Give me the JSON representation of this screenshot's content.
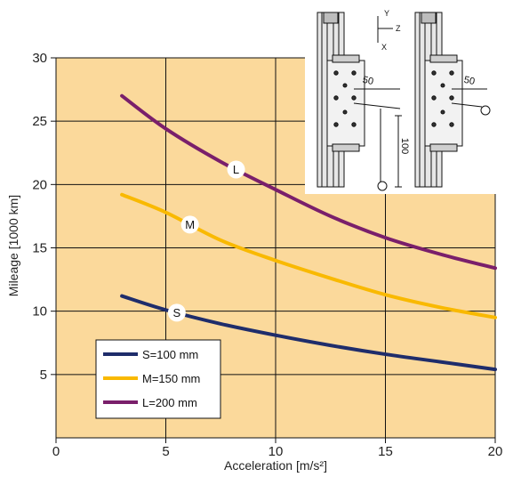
{
  "chart_data": {
    "type": "line",
    "title": "",
    "xlabel": "Acceleration [m/s²]",
    "ylabel": "Mileage [1000 km]",
    "xlim": [
      0,
      20
    ],
    "ylim": [
      0,
      30
    ],
    "xticks": [
      "0",
      "5",
      "10",
      "15",
      "20"
    ],
    "yticks": [
      "5",
      "10",
      "15",
      "20",
      "25",
      "30"
    ],
    "grid": true,
    "background_color": "#fbd99b",
    "legend_position": "bottom-left",
    "series": [
      {
        "name": "S=100 mm",
        "marker": "S",
        "color": "#1f2d6b",
        "marker_x": 5.5,
        "x": [
          3,
          5,
          7.5,
          10,
          12.5,
          15,
          17.5,
          20
        ],
        "y": [
          11.2,
          10.1,
          9.0,
          8.1,
          7.3,
          6.6,
          6.0,
          5.4
        ]
      },
      {
        "name": "M=150 mm",
        "marker": "M",
        "color": "#f9b900",
        "marker_x": 6.1,
        "x": [
          3,
          5,
          7.5,
          10,
          12.5,
          15,
          17.5,
          20
        ],
        "y": [
          19.2,
          17.8,
          15.6,
          14.0,
          12.6,
          11.3,
          10.3,
          9.5
        ]
      },
      {
        "name": "L=200 mm",
        "marker": "L",
        "color": "#7a1f6b",
        "marker_x": 8.2,
        "x": [
          3,
          5,
          7.5,
          10,
          12.5,
          15,
          17.5,
          20
        ],
        "y": [
          27.0,
          24.4,
          21.8,
          19.6,
          17.5,
          15.8,
          14.5,
          13.4
        ]
      }
    ]
  },
  "inset": {
    "axis_y": "Y",
    "axis_z": "Z",
    "axis_x": "X",
    "dim_50_left": "50",
    "dim_50_right": "50",
    "dim_100": "100"
  }
}
